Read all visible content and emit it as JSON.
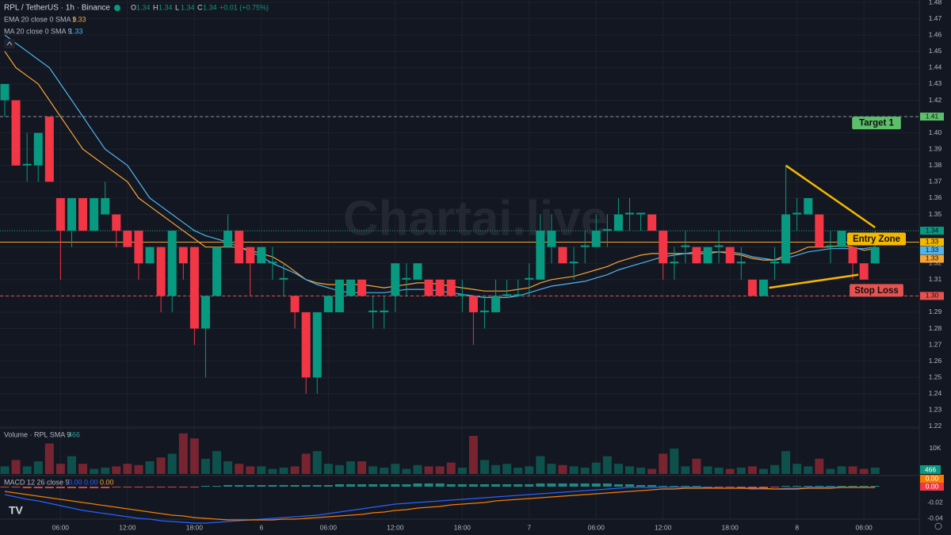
{
  "chart_data": {
    "type": "candlestick",
    "title": "RPL / TetherUS · 1h · Binance",
    "ohlc_legend": {
      "labels": [
        "O",
        "H",
        "L",
        "C"
      ],
      "values": [
        1.34,
        1.34,
        1.34,
        1.34
      ],
      "change": "+0.01 (+0.75%)"
    },
    "watermark": "Chartai.live",
    "categories": [
      null,
      null,
      null,
      null,
      null,
      "06:00",
      null,
      null,
      null,
      null,
      null,
      "12:00",
      null,
      null,
      null,
      null,
      null,
      "18:00",
      null,
      null,
      null,
      null,
      null,
      "6",
      null,
      null,
      null,
      null,
      null,
      "06:00",
      null,
      null,
      null,
      null,
      null,
      "12:00",
      null,
      null,
      null,
      null,
      null,
      "18:00",
      null,
      null,
      null,
      null,
      null,
      "7",
      null,
      null,
      null,
      null,
      null,
      "06:00",
      null,
      null,
      null,
      null,
      null,
      "12:00",
      null,
      null,
      null,
      null,
      null,
      "18:00",
      null,
      null,
      null,
      null,
      null,
      "8",
      null,
      null,
      null,
      null,
      null,
      "06:00",
      null
    ],
    "open": [
      1.42,
      1.42,
      1.38,
      1.38,
      1.41,
      1.36,
      1.34,
      1.36,
      1.34,
      1.35,
      1.35,
      1.34,
      1.34,
      1.32,
      1.33,
      1.3,
      1.33,
      1.33,
      1.28,
      1.3,
      1.33,
      1.34,
      1.33,
      1.32,
      1.32,
      1.31,
      1.3,
      1.29,
      1.25,
      1.29,
      1.29,
      1.3,
      1.31,
      1.29,
      1.29,
      1.3,
      1.31,
      1.31,
      1.31,
      1.31,
      1.31,
      1.3,
      1.3,
      1.29,
      1.29,
      1.3,
      1.3,
      1.31,
      1.31,
      1.33,
      1.33,
      1.32,
      1.33,
      1.33,
      1.34,
      1.34,
      1.35,
      1.35,
      1.35,
      1.34,
      1.32,
      1.33,
      1.33,
      1.32,
      1.33,
      1.33,
      1.32,
      1.31,
      1.3,
      1.32,
      1.32,
      1.35,
      1.35,
      1.35,
      1.33,
      1.33,
      1.33,
      1.32,
      1.32
    ],
    "high": [
      1.43,
      1.42,
      1.4,
      1.4,
      1.41,
      1.36,
      1.36,
      1.36,
      1.36,
      1.37,
      1.35,
      1.34,
      1.34,
      1.33,
      1.33,
      1.34,
      1.33,
      1.33,
      1.3,
      1.33,
      1.35,
      1.34,
      1.33,
      1.33,
      1.33,
      1.32,
      1.3,
      1.29,
      1.29,
      1.3,
      1.31,
      1.31,
      1.31,
      1.3,
      1.3,
      1.32,
      1.32,
      1.32,
      1.31,
      1.31,
      1.31,
      1.31,
      1.3,
      1.3,
      1.31,
      1.31,
      1.31,
      1.32,
      1.35,
      1.35,
      1.33,
      1.33,
      1.34,
      1.35,
      1.35,
      1.36,
      1.36,
      1.35,
      1.35,
      1.34,
      1.33,
      1.34,
      1.33,
      1.33,
      1.34,
      1.33,
      1.33,
      1.31,
      1.31,
      1.33,
      1.38,
      1.36,
      1.36,
      1.35,
      1.34,
      1.34,
      1.33,
      1.32,
      1.34
    ],
    "low": [
      1.41,
      1.38,
      1.37,
      1.37,
      1.37,
      1.31,
      1.33,
      1.34,
      1.34,
      1.35,
      1.33,
      1.33,
      1.31,
      1.32,
      1.29,
      1.29,
      1.31,
      1.27,
      1.25,
      1.3,
      1.33,
      1.32,
      1.3,
      1.32,
      1.31,
      1.3,
      1.28,
      1.24,
      1.24,
      1.29,
      1.29,
      1.3,
      1.3,
      1.28,
      1.28,
      1.29,
      1.3,
      1.31,
      1.3,
      1.3,
      1.3,
      1.29,
      1.27,
      1.28,
      1.29,
      1.3,
      1.3,
      1.3,
      1.31,
      1.32,
      1.32,
      1.31,
      1.32,
      1.33,
      1.33,
      1.34,
      1.34,
      1.34,
      1.34,
      1.31,
      1.31,
      1.32,
      1.32,
      1.32,
      1.32,
      1.32,
      1.31,
      1.3,
      1.3,
      1.31,
      1.32,
      1.34,
      1.35,
      1.33,
      1.32,
      1.33,
      1.31,
      1.31,
      1.32
    ],
    "close": [
      1.43,
      1.38,
      1.381,
      1.4,
      1.37,
      1.34,
      1.36,
      1.34,
      1.36,
      1.36,
      1.34,
      1.33,
      1.32,
      1.33,
      1.3,
      1.34,
      1.32,
      1.28,
      1.3,
      1.33,
      1.34,
      1.32,
      1.32,
      1.33,
      1.321,
      1.311,
      1.29,
      1.25,
      1.29,
      1.3,
      1.31,
      1.31,
      1.3,
      1.291,
      1.291,
      1.32,
      1.311,
      1.32,
      1.3,
      1.3,
      1.3,
      1.301,
      1.29,
      1.291,
      1.3,
      1.301,
      1.301,
      1.311,
      1.34,
      1.34,
      1.32,
      1.321,
      1.331,
      1.34,
      1.341,
      1.35,
      1.351,
      1.351,
      1.34,
      1.32,
      1.321,
      1.331,
      1.32,
      1.33,
      1.331,
      1.32,
      1.321,
      1.3,
      1.31,
      1.321,
      1.35,
      1.351,
      1.36,
      1.33,
      1.331,
      1.34,
      1.32,
      1.31,
      1.33
    ],
    "up_color": "#089981",
    "down_color": "#f23645",
    "ylim": [
      1.219,
      1.4815
    ],
    "yticks": [
      1.22,
      1.23,
      1.24,
      1.25,
      1.26,
      1.27,
      1.28,
      1.29,
      {
        "value": 1.3,
        "label": "1.30"
      },
      1.31,
      1.32,
      1.33,
      1.34,
      1.35,
      1.36,
      1.37,
      1.38,
      1.39,
      {
        "value": 1.4,
        "label": "1.40"
      },
      1.41,
      1.42,
      1.43,
      1.44,
      1.45,
      1.46,
      1.47,
      1.48
    ],
    "grid": true,
    "indicators": [
      {
        "name": "EMA 20 close 0 SMA 9",
        "value": 1.33,
        "color": "#f7a531",
        "values": [
          1.45,
          1.44,
          1.435,
          1.43,
          1.42,
          1.41,
          1.4,
          1.39,
          1.385,
          1.38,
          1.375,
          1.37,
          1.36,
          1.355,
          1.35,
          1.345,
          1.34,
          1.335,
          1.33,
          1.33,
          1.33,
          1.33,
          1.328,
          1.326,
          1.324,
          1.32,
          1.315,
          1.31,
          1.308,
          1.307,
          1.307,
          1.307,
          1.307,
          1.306,
          1.305,
          1.306,
          1.307,
          1.308,
          1.308,
          1.307,
          1.306,
          1.305,
          1.304,
          1.303,
          1.303,
          1.303,
          1.304,
          1.305,
          1.308,
          1.31,
          1.311,
          1.312,
          1.314,
          1.316,
          1.318,
          1.321,
          1.323,
          1.325,
          1.326,
          1.326,
          1.326,
          1.326,
          1.326,
          1.326,
          1.327,
          1.326,
          1.325,
          1.323,
          1.322,
          1.322,
          1.325,
          1.327,
          1.33,
          1.33,
          1.33,
          1.331,
          1.33,
          1.328,
          1.329
        ]
      },
      {
        "name": "MA 20 close 0 SMA 9",
        "value": 1.33,
        "color": "#4fb5ee",
        "values": [
          1.46,
          1.455,
          1.45,
          1.445,
          1.44,
          1.43,
          1.42,
          1.41,
          1.4,
          1.39,
          1.385,
          1.38,
          1.37,
          1.36,
          1.355,
          1.35,
          1.345,
          1.34,
          1.337,
          1.335,
          1.333,
          1.33,
          1.327,
          1.324,
          1.32,
          1.317,
          1.314,
          1.31,
          1.307,
          1.305,
          1.303,
          1.302,
          1.302,
          1.302,
          1.302,
          1.303,
          1.304,
          1.304,
          1.304,
          1.303,
          1.302,
          1.301,
          1.3,
          1.299,
          1.299,
          1.299,
          1.3,
          1.302,
          1.304,
          1.306,
          1.307,
          1.308,
          1.309,
          1.311,
          1.313,
          1.316,
          1.318,
          1.32,
          1.322,
          1.324,
          1.325,
          1.326,
          1.327,
          1.327,
          1.327,
          1.327,
          1.326,
          1.324,
          1.323,
          1.322,
          1.323,
          1.325,
          1.327,
          1.328,
          1.329,
          1.329,
          1.329,
          1.329,
          1.33
        ]
      }
    ],
    "levels": [
      {
        "name": "Target 1",
        "value": 1.41,
        "color": "#5cbf6a",
        "line_color": "#8a8f9c",
        "dash": true
      },
      {
        "name": "Entry Zone",
        "value": 1.333,
        "color": "#f5b800",
        "line_color": "#f7a531",
        "dash": false
      },
      {
        "name": "Stop Loss",
        "value": 1.3,
        "color": "#e5524f",
        "line_color": "#e5524f",
        "dash": true
      }
    ],
    "trendlines": [
      {
        "x": [
          70,
          78
        ],
        "y": [
          1.38,
          1.342
        ],
        "color": "#f5b800"
      },
      {
        "x": [
          68.5,
          76.5
        ],
        "y": [
          1.305,
          1.313
        ],
        "color": "#f5b800"
      }
    ],
    "price_badges": [
      {
        "value": 1.41,
        "label": "1.41",
        "color": "#5cbf6a"
      },
      {
        "value": 1.34,
        "label": "1.34",
        "color": "#089981",
        "dotted_line": true
      },
      {
        "value": 1.333,
        "label": "1.33",
        "color": "#f5b800"
      },
      {
        "value": 1.329,
        "label": "1.33",
        "color": "#f7a531"
      },
      {
        "value": 1.33,
        "label": "1.33",
        "color": "#4fb5ee"
      },
      {
        "value": 1.3,
        "label": "1.30",
        "color": "#e5524f"
      }
    ],
    "volume": {
      "title": "Volume · RPL SMA 9",
      "last": 466,
      "values": [
        3000,
        5500,
        3000,
        5000,
        12000,
        4000,
        7000,
        4000,
        2000,
        2500,
        3000,
        4000,
        3500,
        5000,
        6500,
        8000,
        16000,
        14000,
        6000,
        9000,
        5000,
        4000,
        3000,
        3000,
        2000,
        2500,
        3000,
        8000,
        9000,
        4000,
        3500,
        5000,
        5000,
        3000,
        2500,
        4000,
        2000,
        3500,
        3000,
        3000,
        4500,
        2500,
        15000,
        5500,
        3500,
        4000,
        2500,
        3000,
        7000,
        4000,
        3500,
        3000,
        2500,
        4500,
        7000,
        4000,
        3000,
        2500,
        2000,
        8000,
        10000,
        3000,
        6000,
        3000,
        2500,
        2000,
        2500,
        3000,
        2000,
        3500,
        9000,
        4000,
        3000,
        6000,
        2000,
        3000,
        3000,
        2000,
        2500
      ],
      "ylim": [
        0,
        17800
      ],
      "yticks": [
        {
          "value": 10000,
          "label": "10K"
        }
      ]
    },
    "macd": {
      "title": "MACD 12 26 close 9",
      "readings": [
        0,
        0,
        0
      ],
      "reading_labels": [
        "0.00",
        "0.00",
        "0.00"
      ],
      "reading_colors": [
        "#2962ff",
        "#2962ff",
        "#f7a531"
      ],
      "badges": [
        {
          "value": 0,
          "label": "0.00",
          "color": "#f57c00"
        },
        {
          "value": 0,
          "label": "0.00",
          "color": "#f23645"
        }
      ],
      "macd_color": "#2962ff",
      "signal_color": "#f57c00",
      "macd": [
        -0.01,
        -0.013,
        -0.016,
        -0.018,
        -0.021,
        -0.024,
        -0.027,
        -0.03,
        -0.032,
        -0.034,
        -0.036,
        -0.038,
        -0.04,
        -0.041,
        -0.043,
        -0.044,
        -0.045,
        -0.046,
        -0.046,
        -0.045,
        -0.044,
        -0.043,
        -0.042,
        -0.041,
        -0.04,
        -0.039,
        -0.038,
        -0.037,
        -0.036,
        -0.034,
        -0.032,
        -0.03,
        -0.028,
        -0.026,
        -0.024,
        -0.022,
        -0.021,
        -0.02,
        -0.019,
        -0.018,
        -0.017,
        -0.016,
        -0.015,
        -0.014,
        -0.013,
        -0.012,
        -0.011,
        -0.01,
        -0.009,
        -0.008,
        -0.007,
        -0.006,
        -0.005,
        -0.004,
        -0.003,
        -0.002,
        -0.001,
        -0.001,
        -0.001,
        -0.001,
        -0.001,
        -0.001,
        -0.001,
        -0.001,
        -0.002,
        -0.002,
        -0.002,
        -0.003,
        -0.003,
        -0.003,
        -0.002,
        -0.002,
        -0.001,
        -0.001,
        -0.001,
        -0.001,
        -0.001,
        -0.001,
        -0.001
      ],
      "signal": [
        -0.006,
        -0.008,
        -0.01,
        -0.012,
        -0.014,
        -0.016,
        -0.018,
        -0.02,
        -0.022,
        -0.024,
        -0.026,
        -0.028,
        -0.03,
        -0.032,
        -0.034,
        -0.036,
        -0.037,
        -0.039,
        -0.04,
        -0.041,
        -0.042,
        -0.042,
        -0.042,
        -0.042,
        -0.042,
        -0.041,
        -0.041,
        -0.04,
        -0.039,
        -0.038,
        -0.037,
        -0.036,
        -0.035,
        -0.033,
        -0.032,
        -0.03,
        -0.029,
        -0.027,
        -0.026,
        -0.025,
        -0.023,
        -0.022,
        -0.021,
        -0.02,
        -0.018,
        -0.017,
        -0.016,
        -0.015,
        -0.014,
        -0.013,
        -0.012,
        -0.011,
        -0.01,
        -0.009,
        -0.008,
        -0.007,
        -0.006,
        -0.005,
        -0.004,
        -0.003,
        -0.003,
        -0.002,
        -0.002,
        -0.002,
        -0.002,
        -0.002,
        -0.002,
        -0.002,
        -0.002,
        -0.003,
        -0.003,
        -0.003,
        -0.002,
        -0.002,
        -0.002,
        -0.001,
        -0.001,
        -0.001,
        -0.001
      ],
      "histogram": [
        -0.001,
        -0.001,
        -0.002,
        -0.002,
        -0.002,
        -0.002,
        -0.002,
        -0.002,
        -0.002,
        -0.002,
        -0.001,
        -0.001,
        -0.001,
        -0.001,
        -0.001,
        -0.001,
        -0.001,
        -0.001,
        0.001,
        0.001,
        0.002,
        0.002,
        0.002,
        0.002,
        0.002,
        0.002,
        0.002,
        0.002,
        0.002,
        0.002,
        0.003,
        0.003,
        0.003,
        0.003,
        0.003,
        0.003,
        0.003,
        0.004,
        0.004,
        0.004,
        0.003,
        0.003,
        0.003,
        0.003,
        0.003,
        0.003,
        0.003,
        0.003,
        0.004,
        0.004,
        0.004,
        0.004,
        0.004,
        0.004,
        0.004,
        0.003,
        0.003,
        0.002,
        0.002,
        0.001,
        0.001,
        0.001,
        0.001,
        -0.001,
        -0.001,
        -0.001,
        -0.002,
        -0.002,
        -0.002,
        -0.001,
        0.001,
        0.001,
        0.001,
        0.001,
        0.001,
        0.001,
        0.001,
        0.001,
        0.001
      ],
      "ylim": [
        -0.046,
        0.011
      ],
      "yticks": [
        {
          "value": 0,
          "label": "0.00"
        },
        {
          "value": -0.02,
          "label": "-0.02"
        },
        {
          "value": -0.04,
          "label": "-0.04"
        }
      ]
    }
  }
}
